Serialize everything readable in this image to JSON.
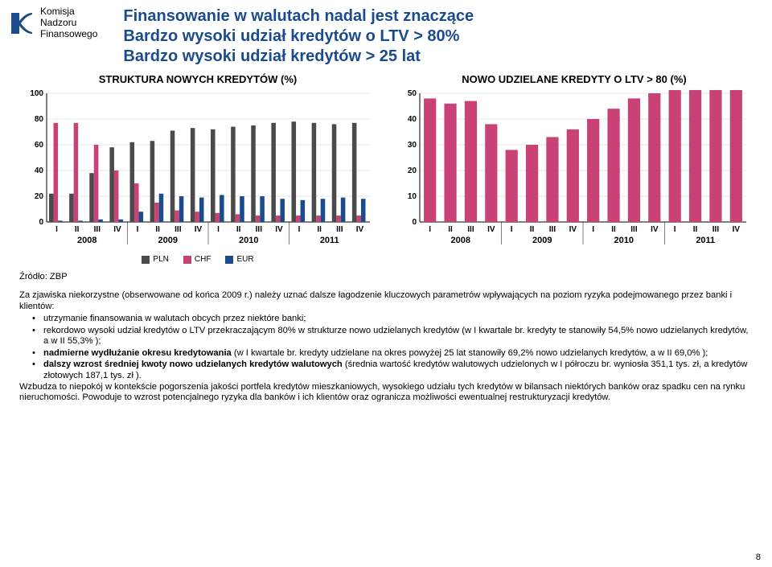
{
  "logo": {
    "line1": "Komisja",
    "line2": "Nadzoru",
    "line3": "Finansowego"
  },
  "title": {
    "line1": "Finansowanie w walutach nadal jest znaczące",
    "line2": "Bardzo wysoki udział kredytów o LTV > 80%",
    "line3": "Bardzo wysoki udział kredytów > 25 lat"
  },
  "chart1": {
    "title": "STRUKTURA NOWYCH KREDYTÓW (%)",
    "ylim": [
      0,
      100
    ],
    "ytick_step": 20,
    "years": [
      "2008",
      "2009",
      "2010",
      "2011"
    ],
    "quarters": [
      "I",
      "II",
      "III",
      "IV"
    ],
    "series": [
      {
        "name": "PLN",
        "color": "#4a4a4a"
      },
      {
        "name": "CHF",
        "color": "#c94275"
      },
      {
        "name": "EUR",
        "color": "#1a4b8c"
      }
    ],
    "data": [
      [
        22,
        77,
        1
      ],
      [
        22,
        77,
        1
      ],
      [
        38,
        60,
        2
      ],
      [
        58,
        40,
        2
      ],
      [
        62,
        30,
        8
      ],
      [
        63,
        15,
        22
      ],
      [
        71,
        9,
        20
      ],
      [
        73,
        8,
        19
      ],
      [
        72,
        7,
        21
      ],
      [
        74,
        6,
        20
      ],
      [
        75,
        5,
        20
      ],
      [
        77,
        5,
        18
      ],
      [
        78,
        5,
        17
      ],
      [
        77,
        5,
        18
      ],
      [
        76,
        5,
        19
      ],
      [
        77,
        5,
        18
      ]
    ],
    "legend": [
      "PLN",
      "CHF",
      "EUR"
    ]
  },
  "chart2": {
    "title": "NOWO UDZIELANE KREDYTY O LTV > 80 (%)",
    "ylim": [
      0,
      50
    ],
    "ytick_step": 10,
    "years": [
      "2008",
      "2009",
      "2010",
      "2011"
    ],
    "quarters": [
      "I",
      "II",
      "III",
      "IV"
    ],
    "color": "#c94275",
    "data": [
      48,
      46,
      47,
      38,
      28,
      30,
      33,
      36,
      40,
      44,
      48,
      50,
      53,
      54,
      55,
      55
    ]
  },
  "source": "Źródło: ZBP",
  "para_intro": "Za zjawiska niekorzystne (obserwowane od końca 2009 r.) należy uznać dalsze łagodzenie kluczowych parametrów wpływających na poziom ryzyka podejmowanego przez banki i klientów:",
  "bullet1": "utrzymanie finansowania w walutach obcych przez niektóre banki;",
  "bullet2": "rekordowo wysoki udział kredytów o LTV przekraczającym 80% w strukturze nowo udzielanych kredytów (w I kwartale br. kredyty te stanowiły 54,5% nowo udzielanych kredytów, a w II 55,3% );",
  "bullet3_bold": "nadmierne wydłużanie okresu kredytowania",
  "bullet3_rest": " (w I kwartale br. kredyty udzielane na okres powyżej 25 lat stanowiły 69,2% nowo udzielanych kredytów, a w II 69,0% );",
  "bullet4_bold": "dalszy wzrost średniej kwoty nowo udzielanych kredytów walutowych",
  "bullet4_rest": " (średnia wartość kredytów walutowych udzielonych w I półroczu br. wyniosła 351,1 tys. zł, a kredytów złotowych 187,1 tys. zł ).",
  "para_final": "Wzbudza to niepokój w kontekście pogorszenia jakości portfela kredytów mieszkaniowych, wysokiego udziału tych kredytów w bilansach niektórych banków oraz spadku cen na rynku nieruchomości. Powoduje to wzrost potencjalnego ryzyka dla banków i ich klientów oraz ogranicza możliwości ewentualnej restrukturyzacji kredytów.",
  "page": "8"
}
